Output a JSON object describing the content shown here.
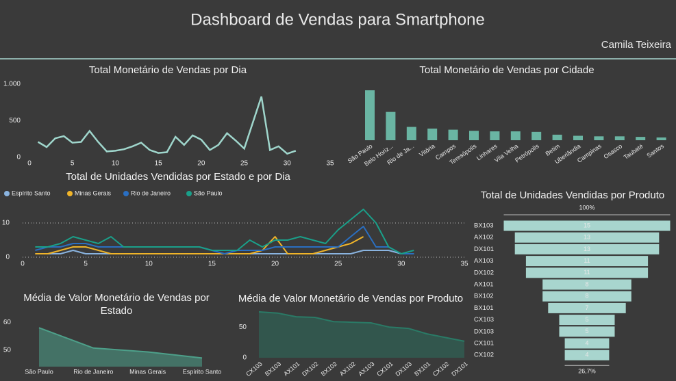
{
  "header": {
    "title": "Dashboard de Vendas para Smartphone",
    "author": "Camila Teixeira"
  },
  "chart_data": [
    {
      "type": "line",
      "title": "Total Monetário de Vendas por Dia",
      "color": "#9fd6cc",
      "x": [
        1,
        2,
        3,
        4,
        5,
        6,
        7,
        8,
        9,
        10,
        11,
        12,
        13,
        14,
        15,
        16,
        17,
        18,
        19,
        20,
        21,
        22,
        23,
        24,
        25,
        27,
        28,
        29,
        30,
        31
      ],
      "values": [
        210,
        140,
        260,
        290,
        200,
        210,
        360,
        210,
        80,
        90,
        110,
        150,
        200,
        100,
        60,
        70,
        280,
        170,
        300,
        240,
        100,
        170,
        330,
        230,
        120,
        830,
        100,
        150,
        50,
        90
      ],
      "xlim": [
        0,
        35
      ],
      "xticks": [
        0,
        5,
        10,
        15,
        20,
        25,
        30,
        35
      ],
      "ylim": [
        0,
        1000
      ],
      "yticks": [
        0,
        500,
        {
          "value": 1000,
          "label": "1.000"
        }
      ]
    },
    {
      "type": "bar",
      "title": "Total Monetário de Vendas por Cidade",
      "color": "#6ab5a3",
      "categories": [
        "São Paulo",
        "Belo Horiz...",
        "Rio de Ja...",
        "Vitória",
        "Campos",
        "Teresópolis",
        "Linhares",
        "Vila Velha",
        "Petrópolis",
        "Betim",
        "Uberlândia",
        "Campinas",
        "Osasco",
        "Taubaté",
        "Santos"
      ],
      "values": [
        900,
        510,
        240,
        210,
        190,
        170,
        160,
        160,
        150,
        100,
        80,
        70,
        70,
        60,
        50
      ]
    },
    {
      "type": "multiline",
      "title": "Total de Unidades Vendidas por Estado e por Dia",
      "grid": true,
      "legend": "top-left",
      "x": [
        1,
        2,
        3,
        4,
        5,
        6,
        7,
        8,
        9,
        10,
        11,
        12,
        13,
        14,
        15,
        16,
        17,
        18,
        19,
        20,
        21,
        22,
        23,
        24,
        25,
        26,
        27,
        28,
        29,
        30,
        31
      ],
      "xlim": [
        0,
        35
      ],
      "xticks": [
        0,
        5,
        10,
        15,
        20,
        25,
        30,
        35
      ],
      "ylim": [
        0,
        15
      ],
      "yticks": [
        0,
        10
      ],
      "series": [
        {
          "name": "Espírito Santo",
          "color": "#8ab4e0",
          "values": [
            1,
            1,
            1,
            2,
            1,
            1,
            1,
            1,
            1,
            1,
            1,
            1,
            1,
            1,
            1,
            1,
            1,
            1,
            1,
            1,
            1,
            1,
            1,
            1,
            1,
            1,
            2,
            2,
            2,
            1,
            1
          ]
        },
        {
          "name": "Minas Gerais",
          "color": "#f0b429",
          "values": [
            1,
            1,
            2,
            3,
            3,
            2,
            1,
            1,
            1,
            1,
            1,
            1,
            1,
            1,
            1,
            1,
            1,
            1,
            2,
            6,
            1,
            1,
            1,
            2,
            3,
            4,
            6,
            null,
            null,
            null,
            null
          ]
        },
        {
          "name": "Rio de Janeiro",
          "color": "#2a6fc2",
          "values": [
            2,
            3,
            3,
            4,
            4,
            3,
            3,
            3,
            3,
            3,
            3,
            3,
            3,
            3,
            2,
            1,
            2,
            2,
            2,
            3,
            3,
            3,
            3,
            3,
            3,
            6,
            9,
            3,
            3,
            1,
            1
          ]
        },
        {
          "name": "São Paulo",
          "color": "#1aa08a",
          "values": [
            3,
            3,
            4,
            6,
            5,
            4,
            6,
            3,
            3,
            3,
            3,
            3,
            3,
            3,
            2,
            2,
            2,
            5,
            3,
            5,
            5,
            6,
            5,
            4,
            8,
            11,
            14,
            10,
            3,
            1,
            2
          ]
        }
      ]
    },
    {
      "type": "area",
      "title": "Média de Valor Monetário de Vendas por Estado",
      "color": "#4da08a",
      "categories": [
        "São Paulo",
        "Rio de Janeiro",
        "Minas Gerais",
        "Espírito Santo"
      ],
      "values": [
        58,
        50.7,
        49.3,
        47.1
      ],
      "ylim": [
        44,
        62
      ],
      "yticks": [
        50,
        60
      ]
    },
    {
      "type": "area",
      "title": "Média de Valor Monetário de Vendas por Produto",
      "color": "#2a7a66",
      "categories": [
        "CX103",
        "BX103",
        "AX101",
        "DX102",
        "BX102",
        "AX102",
        "AX103",
        "CX101",
        "DX103",
        "BX101",
        "CX102",
        "DX101"
      ],
      "values": [
        75,
        73,
        67,
        66,
        59,
        58,
        57,
        50,
        48,
        39,
        33,
        27
      ],
      "ylim": [
        0,
        85
      ],
      "yticks": [
        0,
        50
      ]
    },
    {
      "type": "funnel",
      "title": "Total de Unidades Vendidas por Produto",
      "color": "#a8d5ce",
      "categories": [
        "BX103",
        "AX102",
        "DX101",
        "AX103",
        "DX102",
        "AX101",
        "BX102",
        "BX101",
        "CX103",
        "DX103",
        "CX101",
        "CX102"
      ],
      "values": [
        15,
        13,
        13,
        11,
        11,
        8,
        8,
        7,
        5,
        5,
        4,
        4
      ],
      "top_percent": {
        "value": 100,
        "label": "100%"
      },
      "bottom_percent": {
        "value": 26.7,
        "label": "26,7%"
      }
    }
  ]
}
